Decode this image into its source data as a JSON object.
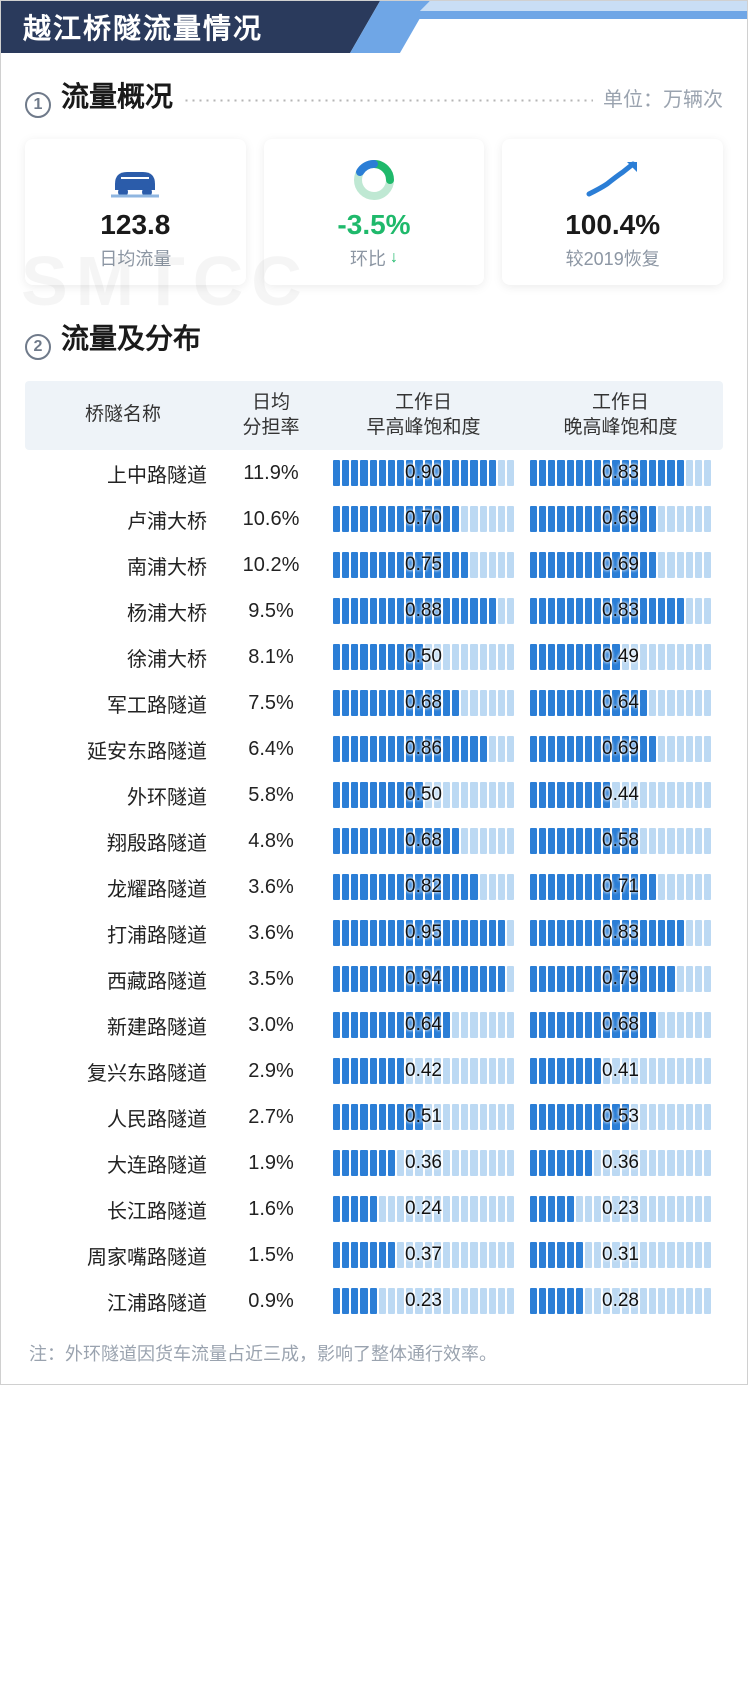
{
  "title": "越江桥隧流量情况",
  "colors": {
    "primary_dark": "#2b5caa",
    "primary_mid": "#6fa6e6",
    "primary_light": "#c9def5",
    "title_bg_dark": "#2a3a5c",
    "title_bg_light": "#a7bfe0",
    "bar_fill": "#2b7ed6",
    "bar_empty": "#bcd9f3",
    "green": "#1fb96b",
    "text_muted": "#9aa3af",
    "header_bg": "#eef3f8"
  },
  "section1": {
    "num": "1",
    "title": "流量概况",
    "unit": "单位：万辆次",
    "cards": [
      {
        "id": "daily",
        "icon": "car",
        "value": "123.8",
        "label": "日均流量",
        "value_class": ""
      },
      {
        "id": "mom",
        "icon": "ring",
        "value": "-3.5%",
        "label": "环比",
        "arrow": "down",
        "value_class": "down"
      },
      {
        "id": "recov",
        "icon": "trend",
        "value": "100.4%",
        "label": "较2019恢复",
        "value_class": ""
      }
    ]
  },
  "section2": {
    "num": "2",
    "title": "流量及分布",
    "columns": [
      "桥隧名称",
      "日均\n分担率",
      "工作日\n早高峰饱和度",
      "工作日\n晚高峰饱和度"
    ],
    "bar_segments": 20,
    "rows": [
      {
        "name": "上中路隧道",
        "share": "11.9%",
        "am": 0.9,
        "pm": 0.83
      },
      {
        "name": "卢浦大桥",
        "share": "10.6%",
        "am": 0.7,
        "pm": 0.69
      },
      {
        "name": "南浦大桥",
        "share": "10.2%",
        "am": 0.75,
        "pm": 0.69
      },
      {
        "name": "杨浦大桥",
        "share": "9.5%",
        "am": 0.88,
        "pm": 0.83
      },
      {
        "name": "徐浦大桥",
        "share": "8.1%",
        "am": 0.5,
        "pm": 0.49
      },
      {
        "name": "军工路隧道",
        "share": "7.5%",
        "am": 0.68,
        "pm": 0.64
      },
      {
        "name": "延安东路隧道",
        "share": "6.4%",
        "am": 0.86,
        "pm": 0.69
      },
      {
        "name": "外环隧道",
        "share": "5.8%",
        "am": 0.5,
        "pm": 0.44
      },
      {
        "name": "翔殷路隧道",
        "share": "4.8%",
        "am": 0.68,
        "pm": 0.58
      },
      {
        "name": "龙耀路隧道",
        "share": "3.6%",
        "am": 0.82,
        "pm": 0.71
      },
      {
        "name": "打浦路隧道",
        "share": "3.6%",
        "am": 0.95,
        "pm": 0.83
      },
      {
        "name": "西藏路隧道",
        "share": "3.5%",
        "am": 0.94,
        "pm": 0.79
      },
      {
        "name": "新建路隧道",
        "share": "3.0%",
        "am": 0.64,
        "pm": 0.68
      },
      {
        "name": "复兴东路隧道",
        "share": "2.9%",
        "am": 0.42,
        "pm": 0.41
      },
      {
        "name": "人民路隧道",
        "share": "2.7%",
        "am": 0.51,
        "pm": 0.53
      },
      {
        "name": "大连路隧道",
        "share": "1.9%",
        "am": 0.36,
        "pm": 0.36
      },
      {
        "name": "长江路隧道",
        "share": "1.6%",
        "am": 0.24,
        "pm": 0.23
      },
      {
        "name": "周家嘴路隧道",
        "share": "1.5%",
        "am": 0.37,
        "pm": 0.31
      },
      {
        "name": "江浦路隧道",
        "share": "0.9%",
        "am": 0.23,
        "pm": 0.28
      }
    ]
  },
  "footnote": "注：外环隧道因货车流量占近三成，影响了整体通行效率。",
  "watermark": "SMTCC"
}
